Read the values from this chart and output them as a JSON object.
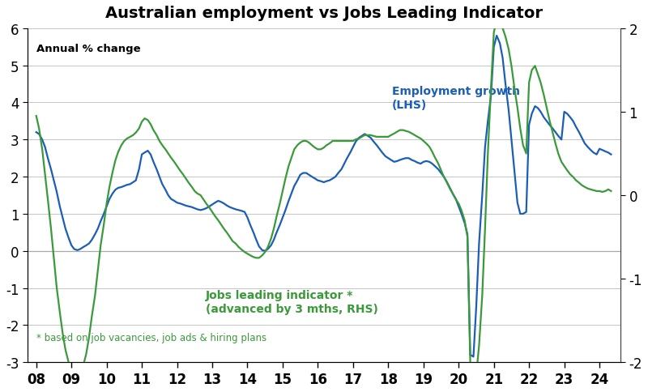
{
  "title": "Australian employment vs Jobs Leading Indicator",
  "subtitle": "Annual % change",
  "footnote": "* based on job vacancies, job ads & hiring plans",
  "label_emp": "Employment growth\n(LHS)",
  "label_jli": "Jobs leading indicator *\n(advanced by 3 mths, RHS)",
  "color_emp": "#1a5eb8",
  "color_jli": "#3a9a3a",
  "lhs_ylim": [
    -3,
    6
  ],
  "rhs_ylim": [
    -2,
    2
  ],
  "lhs_yticks": [
    -3,
    -2,
    -1,
    0,
    1,
    2,
    3,
    4,
    5,
    6
  ],
  "rhs_yticks": [
    -2,
    -1,
    0,
    1,
    2
  ],
  "emp_x": [
    2008.0,
    2008.08,
    2008.17,
    2008.25,
    2008.33,
    2008.42,
    2008.5,
    2008.58,
    2008.67,
    2008.75,
    2008.83,
    2008.92,
    2009.0,
    2009.08,
    2009.17,
    2009.25,
    2009.33,
    2009.42,
    2009.5,
    2009.58,
    2009.67,
    2009.75,
    2009.83,
    2009.92,
    2010.0,
    2010.08,
    2010.17,
    2010.25,
    2010.33,
    2010.42,
    2010.5,
    2010.58,
    2010.67,
    2010.75,
    2010.83,
    2010.92,
    2011.0,
    2011.08,
    2011.17,
    2011.25,
    2011.33,
    2011.42,
    2011.5,
    2011.58,
    2011.67,
    2011.75,
    2011.83,
    2011.92,
    2012.0,
    2012.08,
    2012.17,
    2012.25,
    2012.33,
    2012.42,
    2012.5,
    2012.58,
    2012.67,
    2012.75,
    2012.83,
    2012.92,
    2013.0,
    2013.08,
    2013.17,
    2013.25,
    2013.33,
    2013.42,
    2013.5,
    2013.58,
    2013.67,
    2013.75,
    2013.83,
    2013.92,
    2014.0,
    2014.08,
    2014.17,
    2014.25,
    2014.33,
    2014.42,
    2014.5,
    2014.58,
    2014.67,
    2014.75,
    2014.83,
    2014.92,
    2015.0,
    2015.08,
    2015.17,
    2015.25,
    2015.33,
    2015.42,
    2015.5,
    2015.58,
    2015.67,
    2015.75,
    2015.83,
    2015.92,
    2016.0,
    2016.08,
    2016.17,
    2016.25,
    2016.33,
    2016.42,
    2016.5,
    2016.58,
    2016.67,
    2016.75,
    2016.83,
    2016.92,
    2017.0,
    2017.08,
    2017.17,
    2017.25,
    2017.33,
    2017.42,
    2017.5,
    2017.58,
    2017.67,
    2017.75,
    2017.83,
    2017.92,
    2018.0,
    2018.08,
    2018.17,
    2018.25,
    2018.33,
    2018.42,
    2018.5,
    2018.58,
    2018.67,
    2018.75,
    2018.83,
    2018.92,
    2019.0,
    2019.08,
    2019.17,
    2019.25,
    2019.33,
    2019.42,
    2019.5,
    2019.58,
    2019.67,
    2019.75,
    2019.83,
    2019.92,
    2020.0,
    2020.08,
    2020.17,
    2020.25,
    2020.33,
    2020.42,
    2020.5,
    2020.58,
    2020.67,
    2020.75,
    2020.83,
    2020.92,
    2021.0,
    2021.08,
    2021.17,
    2021.25,
    2021.33,
    2021.42,
    2021.5,
    2021.58,
    2021.67,
    2021.75,
    2021.83,
    2021.92,
    2022.0,
    2022.08,
    2022.17,
    2022.25,
    2022.33,
    2022.42,
    2022.5,
    2022.58,
    2022.67,
    2022.75,
    2022.83,
    2022.92,
    2023.0,
    2023.08,
    2023.17,
    2023.25,
    2023.33,
    2023.42,
    2023.5,
    2023.58,
    2023.67,
    2023.75,
    2023.83,
    2023.92,
    2024.0,
    2024.08,
    2024.17,
    2024.25,
    2024.33
  ],
  "emp_y": [
    3.2,
    3.15,
    3.0,
    2.8,
    2.5,
    2.2,
    1.9,
    1.6,
    1.2,
    0.9,
    0.6,
    0.35,
    0.15,
    0.05,
    0.02,
    0.05,
    0.1,
    0.15,
    0.2,
    0.3,
    0.45,
    0.6,
    0.8,
    1.0,
    1.2,
    1.4,
    1.55,
    1.65,
    1.7,
    1.72,
    1.75,
    1.78,
    1.8,
    1.85,
    1.9,
    2.2,
    2.6,
    2.65,
    2.7,
    2.6,
    2.4,
    2.2,
    2.0,
    1.8,
    1.65,
    1.5,
    1.4,
    1.35,
    1.3,
    1.28,
    1.25,
    1.22,
    1.2,
    1.18,
    1.15,
    1.12,
    1.1,
    1.12,
    1.15,
    1.2,
    1.25,
    1.3,
    1.35,
    1.32,
    1.28,
    1.22,
    1.18,
    1.15,
    1.12,
    1.1,
    1.08,
    1.05,
    0.9,
    0.7,
    0.5,
    0.3,
    0.12,
    0.02,
    0.0,
    0.05,
    0.15,
    0.3,
    0.5,
    0.7,
    0.9,
    1.1,
    1.35,
    1.55,
    1.75,
    1.9,
    2.05,
    2.1,
    2.1,
    2.05,
    2.0,
    1.95,
    1.9,
    1.88,
    1.85,
    1.88,
    1.9,
    1.95,
    2.0,
    2.1,
    2.2,
    2.35,
    2.5,
    2.65,
    2.8,
    2.95,
    3.05,
    3.1,
    3.15,
    3.1,
    3.05,
    2.95,
    2.85,
    2.75,
    2.65,
    2.55,
    2.5,
    2.45,
    2.4,
    2.42,
    2.45,
    2.48,
    2.5,
    2.5,
    2.45,
    2.42,
    2.38,
    2.35,
    2.4,
    2.42,
    2.4,
    2.35,
    2.28,
    2.2,
    2.1,
    2.0,
    1.85,
    1.7,
    1.55,
    1.4,
    1.2,
    1.0,
    0.75,
    0.45,
    -2.8,
    -2.85,
    -1.5,
    0.2,
    1.5,
    2.8,
    3.5,
    4.2,
    5.5,
    5.8,
    5.6,
    5.2,
    4.5,
    3.8,
    3.0,
    2.2,
    1.3,
    1.0,
    1.0,
    1.05,
    3.4,
    3.7,
    3.9,
    3.85,
    3.75,
    3.6,
    3.5,
    3.4,
    3.3,
    3.2,
    3.1,
    3.0,
    3.75,
    3.7,
    3.6,
    3.5,
    3.35,
    3.2,
    3.05,
    2.9,
    2.8,
    2.72,
    2.65,
    2.6,
    2.75,
    2.72,
    2.68,
    2.65,
    2.6
  ],
  "jli_x": [
    2008.0,
    2008.08,
    2008.17,
    2008.25,
    2008.33,
    2008.42,
    2008.5,
    2008.58,
    2008.67,
    2008.75,
    2008.83,
    2008.92,
    2009.0,
    2009.08,
    2009.17,
    2009.25,
    2009.33,
    2009.42,
    2009.5,
    2009.58,
    2009.67,
    2009.75,
    2009.83,
    2009.92,
    2010.0,
    2010.08,
    2010.17,
    2010.25,
    2010.33,
    2010.42,
    2010.5,
    2010.58,
    2010.67,
    2010.75,
    2010.83,
    2010.92,
    2011.0,
    2011.08,
    2011.17,
    2011.25,
    2011.33,
    2011.42,
    2011.5,
    2011.58,
    2011.67,
    2011.75,
    2011.83,
    2011.92,
    2012.0,
    2012.08,
    2012.17,
    2012.25,
    2012.33,
    2012.42,
    2012.5,
    2012.58,
    2012.67,
    2012.75,
    2012.83,
    2012.92,
    2013.0,
    2013.08,
    2013.17,
    2013.25,
    2013.33,
    2013.42,
    2013.5,
    2013.58,
    2013.67,
    2013.75,
    2013.83,
    2013.92,
    2014.0,
    2014.08,
    2014.17,
    2014.25,
    2014.33,
    2014.42,
    2014.5,
    2014.58,
    2014.67,
    2014.75,
    2014.83,
    2014.92,
    2015.0,
    2015.08,
    2015.17,
    2015.25,
    2015.33,
    2015.42,
    2015.5,
    2015.58,
    2015.67,
    2015.75,
    2015.83,
    2015.92,
    2016.0,
    2016.08,
    2016.17,
    2016.25,
    2016.33,
    2016.42,
    2016.5,
    2016.58,
    2016.67,
    2016.75,
    2016.83,
    2016.92,
    2017.0,
    2017.08,
    2017.17,
    2017.25,
    2017.33,
    2017.42,
    2017.5,
    2017.58,
    2017.67,
    2017.75,
    2017.83,
    2017.92,
    2018.0,
    2018.08,
    2018.17,
    2018.25,
    2018.33,
    2018.42,
    2018.5,
    2018.58,
    2018.67,
    2018.75,
    2018.83,
    2018.92,
    2019.0,
    2019.08,
    2019.17,
    2019.25,
    2019.33,
    2019.42,
    2019.5,
    2019.58,
    2019.67,
    2019.75,
    2019.83,
    2019.92,
    2020.0,
    2020.08,
    2020.17,
    2020.25,
    2020.33,
    2020.42,
    2020.5,
    2020.58,
    2020.67,
    2020.75,
    2020.83,
    2020.92,
    2021.0,
    2021.08,
    2021.17,
    2021.25,
    2021.33,
    2021.42,
    2021.5,
    2021.58,
    2021.67,
    2021.75,
    2021.83,
    2021.92,
    2022.0,
    2022.08,
    2022.17,
    2022.25,
    2022.33,
    2022.42,
    2022.5,
    2022.58,
    2022.67,
    2022.75,
    2022.83,
    2022.92,
    2023.0,
    2023.08,
    2023.17,
    2023.25,
    2023.33,
    2023.42,
    2023.5,
    2023.58,
    2023.67,
    2023.75,
    2023.83,
    2023.92,
    2024.0,
    2024.08,
    2024.17,
    2024.25,
    2024.33
  ],
  "jli_y": [
    0.95,
    0.8,
    0.55,
    0.25,
    -0.05,
    -0.4,
    -0.75,
    -1.1,
    -1.4,
    -1.65,
    -1.85,
    -2.0,
    -2.1,
    -2.15,
    -2.18,
    -2.15,
    -2.05,
    -1.9,
    -1.7,
    -1.45,
    -1.2,
    -0.9,
    -0.6,
    -0.35,
    -0.1,
    0.1,
    0.28,
    0.42,
    0.52,
    0.6,
    0.65,
    0.68,
    0.7,
    0.72,
    0.75,
    0.8,
    0.88,
    0.92,
    0.9,
    0.85,
    0.78,
    0.72,
    0.65,
    0.6,
    0.55,
    0.5,
    0.45,
    0.4,
    0.35,
    0.3,
    0.25,
    0.2,
    0.15,
    0.1,
    0.05,
    0.02,
    0.0,
    -0.05,
    -0.1,
    -0.15,
    -0.2,
    -0.25,
    -0.3,
    -0.35,
    -0.4,
    -0.45,
    -0.5,
    -0.55,
    -0.58,
    -0.62,
    -0.65,
    -0.68,
    -0.7,
    -0.72,
    -0.74,
    -0.75,
    -0.75,
    -0.72,
    -0.68,
    -0.62,
    -0.52,
    -0.4,
    -0.25,
    -0.1,
    0.05,
    0.2,
    0.35,
    0.45,
    0.55,
    0.6,
    0.63,
    0.65,
    0.65,
    0.63,
    0.6,
    0.57,
    0.55,
    0.55,
    0.57,
    0.6,
    0.62,
    0.65,
    0.65,
    0.65,
    0.65,
    0.65,
    0.65,
    0.65,
    0.65,
    0.67,
    0.68,
    0.7,
    0.72,
    0.72,
    0.72,
    0.71,
    0.7,
    0.7,
    0.7,
    0.7,
    0.7,
    0.72,
    0.74,
    0.76,
    0.78,
    0.78,
    0.77,
    0.76,
    0.74,
    0.72,
    0.7,
    0.68,
    0.65,
    0.62,
    0.58,
    0.52,
    0.45,
    0.38,
    0.3,
    0.22,
    0.15,
    0.08,
    0.02,
    -0.05,
    -0.1,
    -0.18,
    -0.3,
    -0.5,
    -2.0,
    -2.2,
    -2.15,
    -1.8,
    -1.2,
    -0.4,
    0.5,
    1.3,
    1.95,
    2.1,
    2.05,
    2.0,
    1.9,
    1.75,
    1.55,
    1.3,
    1.05,
    0.8,
    0.6,
    0.5,
    1.35,
    1.5,
    1.55,
    1.45,
    1.35,
    1.2,
    1.05,
    0.9,
    0.75,
    0.62,
    0.5,
    0.4,
    0.35,
    0.3,
    0.25,
    0.22,
    0.18,
    0.15,
    0.12,
    0.1,
    0.08,
    0.07,
    0.06,
    0.05,
    0.05,
    0.04,
    0.05,
    0.07,
    0.05
  ],
  "bg_color": "#ffffff",
  "grid_color": "#bbbbbb",
  "xticks": [
    2008,
    2009,
    2010,
    2011,
    2012,
    2013,
    2014,
    2015,
    2016,
    2017,
    2018,
    2019,
    2020,
    2021,
    2022,
    2023,
    2024
  ],
  "xticklabels": [
    "08",
    "09",
    "10",
    "11",
    "12",
    "13",
    "14",
    "15",
    "16",
    "17",
    "18",
    "19",
    "20",
    "21",
    "22",
    "23",
    "24"
  ],
  "xlim": [
    2007.75,
    2024.6
  ]
}
